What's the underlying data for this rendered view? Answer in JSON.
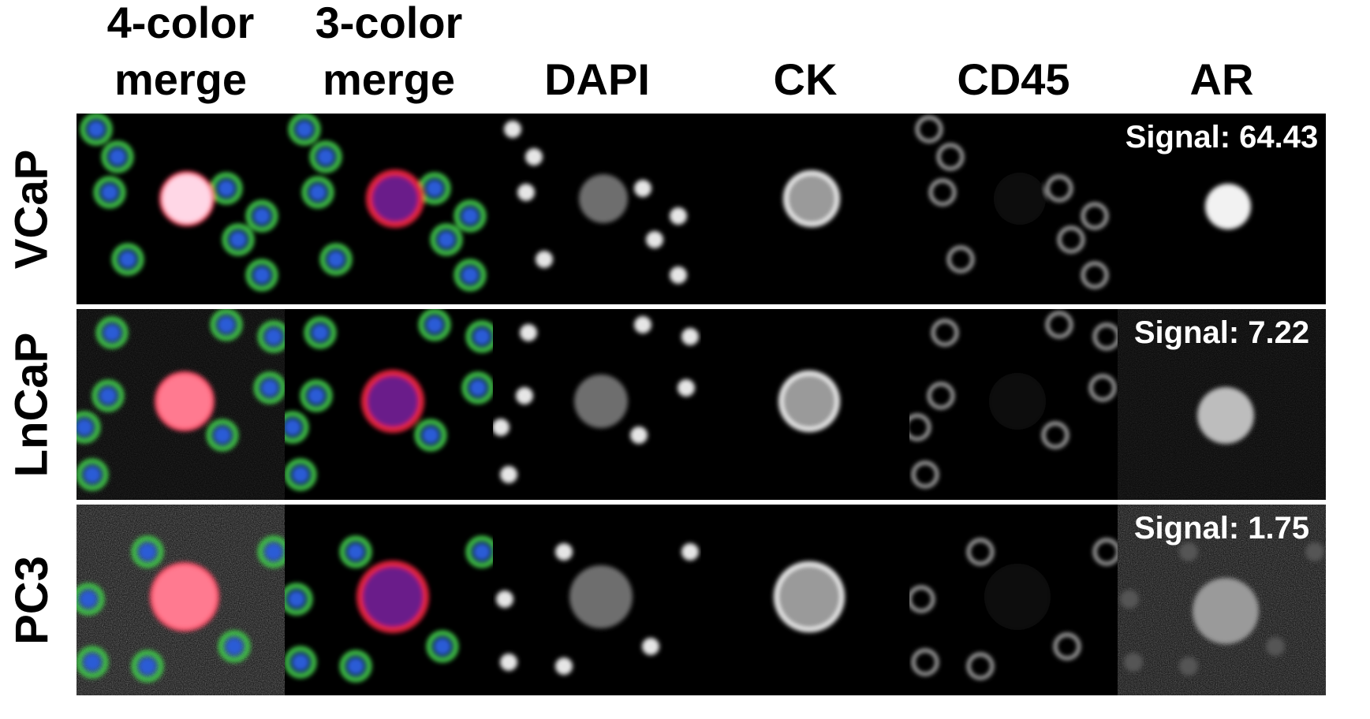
{
  "columns": [
    "4-color\nmerge",
    "3-color\nmerge",
    "DAPI",
    "CK",
    "CD45",
    "AR"
  ],
  "rows": [
    {
      "name": "VCaP",
      "signal": "Signal: 64.43"
    },
    {
      "name": "LnCaP",
      "signal": "Signal: 7.22"
    },
    {
      "name": "PC3",
      "signal": "Signal: 1.75"
    }
  ],
  "colors": {
    "dapi": "#2a5bd6",
    "cd45": "#3fc24a",
    "ck": "#e0243a",
    "ar_merge": "#ffd7e6"
  }
}
